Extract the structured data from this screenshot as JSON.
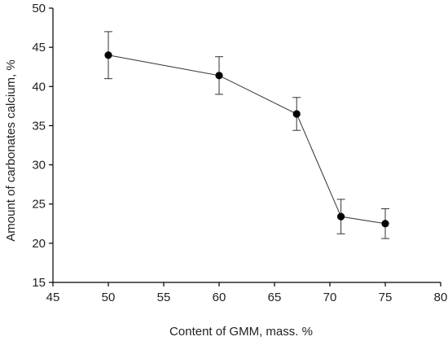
{
  "chart_data": {
    "type": "line",
    "title": "",
    "xlabel": "Content of GMM, mass. %",
    "ylabel": "Amount of carbonates calcium, %",
    "xlim": [
      45,
      80
    ],
    "ylim": [
      15,
      50
    ],
    "xticks": [
      45,
      50,
      55,
      60,
      65,
      70,
      75,
      80
    ],
    "yticks": [
      15,
      20,
      25,
      30,
      35,
      40,
      45,
      50
    ],
    "grid": false,
    "legend": "none",
    "series": [
      {
        "x": [
          50,
          60,
          67,
          71,
          75
        ],
        "y": [
          44.0,
          41.4,
          36.5,
          23.4,
          22.5
        ],
        "error_low": [
          41.0,
          39.0,
          34.4,
          21.2,
          20.6
        ],
        "error_high": [
          47.0,
          43.8,
          38.6,
          25.6,
          24.4
        ]
      }
    ],
    "colors": {
      "line": "#333333",
      "marker": "#000000",
      "axis": "#000000",
      "text": "#222222"
    }
  }
}
